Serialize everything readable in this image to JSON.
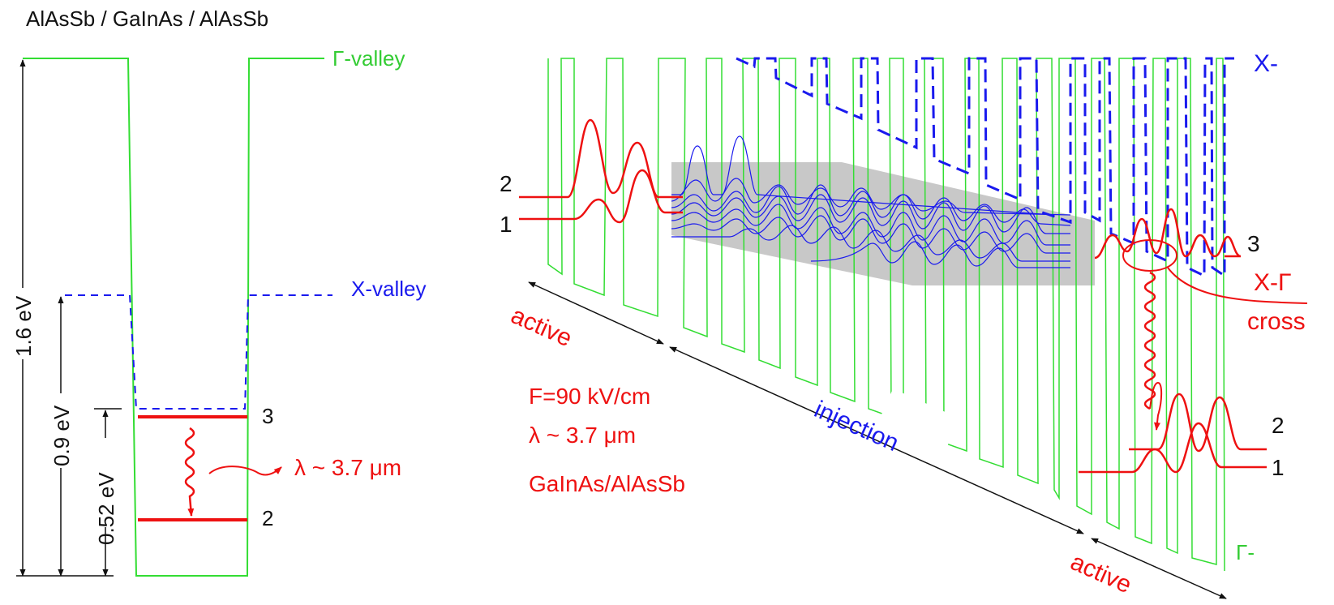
{
  "title": "AlAsSb / GaInAs / AlAsSb",
  "left_panel": {
    "gamma_label": "Γ-valley",
    "x_label": "X-valley",
    "dim_1_6": "1.6 eV",
    "dim_0_9": "0.9 eV",
    "dim_0_52": "0.52 eV",
    "level_3": "3",
    "level_2": "2",
    "wavelength": "λ ~ 3.7 μm"
  },
  "right_panel": {
    "x_label": "X-",
    "gamma_label": "Γ-",
    "active_left": "active",
    "active_right": "active",
    "injection": "injection",
    "field": "F=90 kV/cm",
    "wavelength": "λ ~ 3.7 μm",
    "material": "GaInAs/AlAsSb",
    "cross_1": "X-Γ",
    "cross_2": "cross",
    "left_state_2": "2",
    "left_state_1": "1",
    "right_state_3": "3",
    "right_state_2": "2",
    "right_state_1": "1"
  },
  "colors": {
    "gamma": "#33dd33",
    "x_valley": "#1a1aee",
    "red": "#ee1111",
    "injector_shade": "#c8c8c8",
    "text": "#111111"
  }
}
